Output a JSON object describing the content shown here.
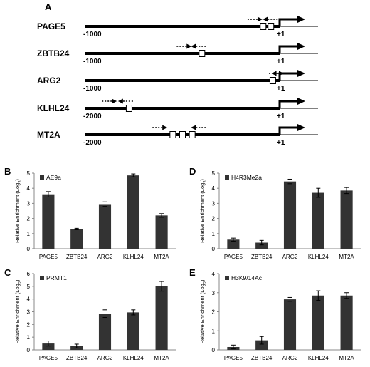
{
  "panel_a": {
    "letter": "A",
    "plus_one": "+1",
    "genes": [
      {
        "name": "PAGE5",
        "start_label": "-1000",
        "start": -1000,
        "boxes": [
          -85,
          -45
        ],
        "fwd_primer": -165,
        "rev_primer": -10
      },
      {
        "name": "ZBTB24",
        "start_label": "-1000",
        "start": -1000,
        "boxes": [
          -400
        ],
        "fwd_primer": -530,
        "rev_primer": -380
      },
      {
        "name": "ARG2",
        "start_label": "-1000",
        "start": -1000,
        "boxes": [
          -35
        ],
        "fwd_primer": -55,
        "rev_primer": 35
      },
      {
        "name": "KLHL24",
        "start_label": "-2000",
        "start": -2000,
        "boxes": [
          -1550
        ],
        "fwd_primer": -1830,
        "rev_primer": -1510
      },
      {
        "name": "MT2A",
        "start_label": "-2000",
        "start": -2000,
        "boxes": [
          -1100,
          -1000,
          -900
        ],
        "fwd_primer": -1310,
        "rev_primer": -760
      }
    ]
  },
  "chart_data": [
    {
      "letter": "B",
      "type": "bar",
      "legend": "AE9a",
      "ylabel": "Relative Enrichment (Log2)",
      "categories": [
        "PAGE5",
        "ZBTB24",
        "ARG2",
        "KLHL24",
        "MT2A"
      ],
      "values": [
        3.6,
        1.3,
        2.95,
        4.85,
        2.2
      ],
      "errors": [
        0.18,
        0.05,
        0.15,
        0.1,
        0.12
      ],
      "ylim": [
        0,
        5
      ],
      "yticks": [
        0,
        1,
        2,
        3,
        4,
        5
      ]
    },
    {
      "letter": "C",
      "type": "bar",
      "legend": "PRMT1",
      "ylabel": "Relative Enrichment (Log2)",
      "categories": [
        "PAGE5",
        "ZBTB24",
        "ARG2",
        "KLHL24",
        "MT2A"
      ],
      "values": [
        0.5,
        0.3,
        2.85,
        2.95,
        5.0
      ],
      "errors": [
        0.2,
        0.15,
        0.3,
        0.2,
        0.38
      ],
      "ylim": [
        0,
        6
      ],
      "yticks": [
        0,
        1,
        2,
        3,
        4,
        5,
        6
      ]
    },
    {
      "letter": "D",
      "type": "bar",
      "legend": "H4R3Me2a",
      "ylabel": "Relative Enrichment (Log2)",
      "categories": [
        "PAGE5",
        "ZBTB24",
        "ARG2",
        "KLHL24",
        "MT2A"
      ],
      "values": [
        0.6,
        0.4,
        4.45,
        3.7,
        3.85
      ],
      "errors": [
        0.1,
        0.15,
        0.15,
        0.3,
        0.2
      ],
      "ylim": [
        0,
        5
      ],
      "yticks": [
        0,
        1,
        2,
        3,
        4,
        5
      ]
    },
    {
      "letter": "E",
      "type": "bar",
      "legend": "H3K9/14Ac",
      "ylabel": "Relative Enrichment (Log2)",
      "categories": [
        "PAGE5",
        "ZBTB24",
        "ARG2",
        "KLHL24",
        "MT2A"
      ],
      "values": [
        0.15,
        0.5,
        2.65,
        2.85,
        2.85
      ],
      "errors": [
        0.1,
        0.2,
        0.1,
        0.25,
        0.15
      ],
      "ylim": [
        0,
        4
      ],
      "yticks": [
        0,
        1,
        2,
        3,
        4
      ]
    }
  ]
}
